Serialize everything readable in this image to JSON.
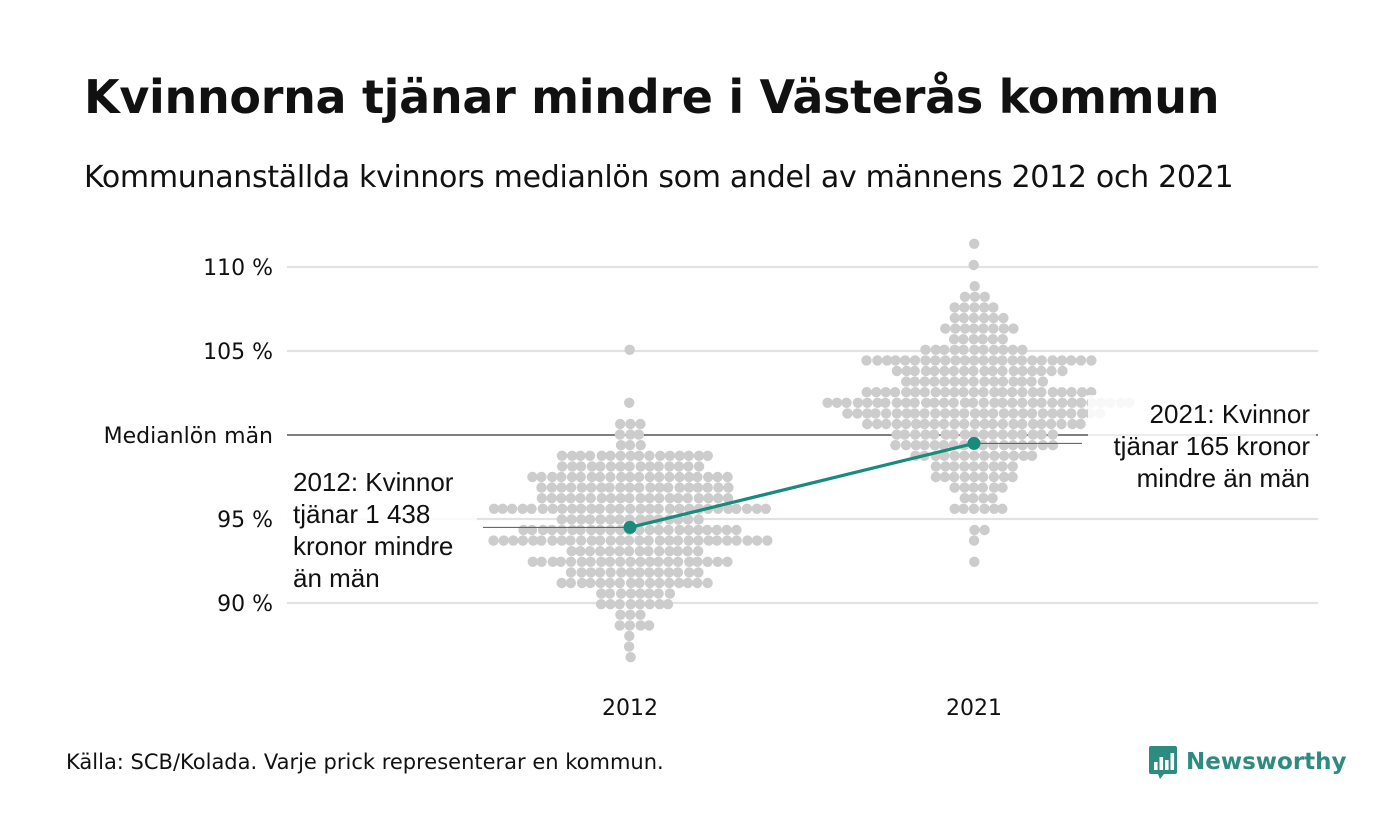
{
  "header": {
    "title": "Kvinnorna tjänar mindre i Västerås kommun",
    "subtitle": "Kommunanställda kvinnors medianlön som andel av männens 2012 och 2021"
  },
  "footer": {
    "source": "Källa: SCB/Kolada. Varje prick representerar en kommun.",
    "brand": "Newsworthy"
  },
  "colors": {
    "accent": "#1a8a7c",
    "dots": "#cccccc",
    "grid": "#e2e2e2",
    "reference": "#333333"
  },
  "chart_data": {
    "type": "scatter",
    "variant": "beeswarm",
    "categories": [
      "2012",
      "2021"
    ],
    "y_ticks": [
      {
        "value": 90,
        "label": "90 %"
      },
      {
        "value": 95,
        "label": "95 %"
      },
      {
        "value": 100,
        "label": "Medianlön män"
      },
      {
        "value": 105,
        "label": "105 %"
      },
      {
        "value": 110,
        "label": "110 %"
      }
    ],
    "ylim": [
      85.5,
      111.5
    ],
    "grid": true,
    "reference_line": {
      "value": 100,
      "label": "Medianlön män"
    },
    "distribution_summary": [
      {
        "category": "2012",
        "min": 86.5,
        "max": 105.2,
        "n": 290
      },
      {
        "category": "2021",
        "min": 92.6,
        "max": 111.4,
        "n": 290
      }
    ],
    "highlight": {
      "name": "Västerås",
      "values": [
        {
          "x": "2012",
          "y": 94.5
        },
        {
          "x": "2021",
          "y": 99.5
        }
      ]
    },
    "annotations": [
      {
        "x": "2012",
        "lines": [
          "2012: Kvinnor",
          "tjänar 1 438",
          "kronor mindre",
          "än män"
        ]
      },
      {
        "x": "2021",
        "lines": [
          "2021: Kvinnor",
          "tjänar 165 kronor",
          "mindre än män"
        ]
      }
    ]
  }
}
